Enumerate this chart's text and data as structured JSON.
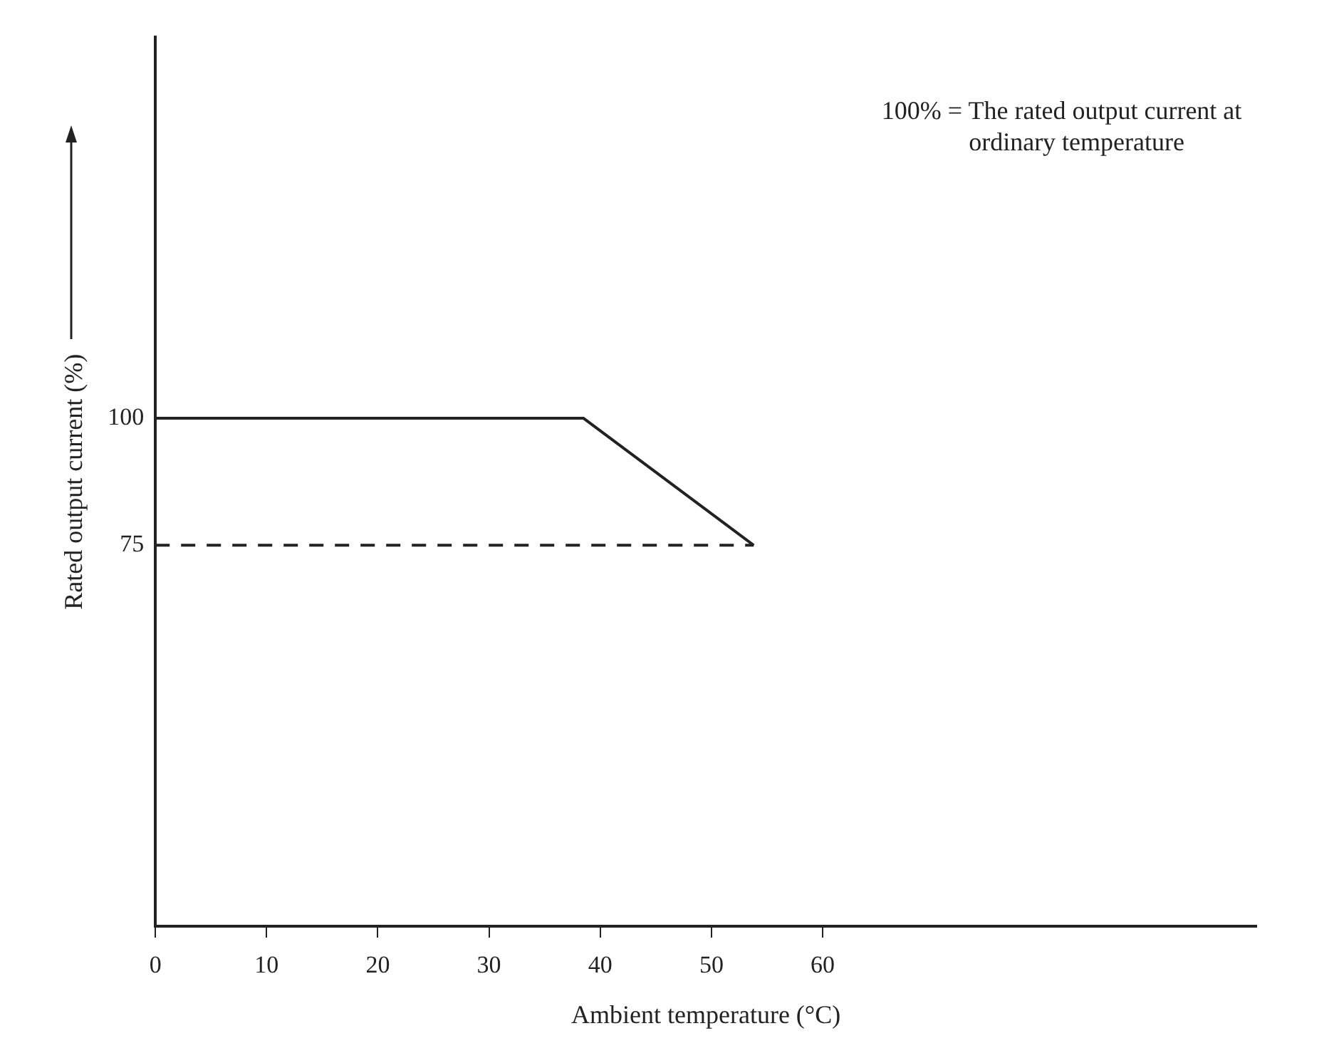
{
  "chart_data": {
    "type": "line",
    "xlabel": "Ambient temperature (°C)",
    "ylabel": "Rated output current (%)",
    "annotations": [
      "100% = The rated output current at\nordinary temperature"
    ],
    "xlim": [
      0,
      99
    ],
    "xticks": [
      0,
      10,
      20,
      30,
      40,
      50,
      60
    ],
    "ylim": [
      0,
      175
    ],
    "yticks": [
      75,
      100
    ],
    "grid": false,
    "legend": false,
    "marker": "none",
    "series": [
      {
        "color": "#222222",
        "x": [
          0,
          38.5,
          53.8
        ],
        "values": [
          100,
          100,
          75
        ],
        "line_style": "solid"
      },
      {
        "color": "#222222",
        "x": [
          0,
          53.8
        ],
        "values": [
          75,
          75
        ],
        "line_style": "dashed"
      }
    ]
  }
}
